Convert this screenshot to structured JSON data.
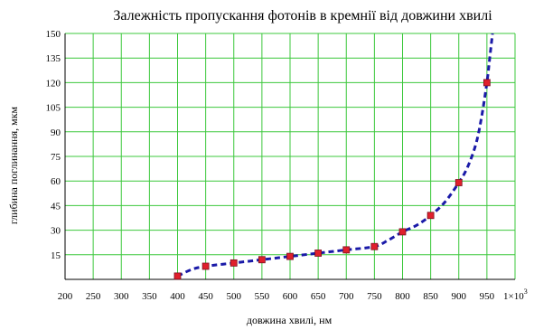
{
  "chart_data": {
    "type": "line",
    "title": "Залежність пропускання фотонів в кремнії від довжини хвилі",
    "xlabel": "довжина хвилі, нм",
    "ylabel": "глибина поглинання, мкм",
    "x_ticks": [
      "200",
      "250",
      "300",
      "350",
      "400",
      "450",
      "500",
      "550",
      "600",
      "650",
      "700",
      "750",
      "800",
      "850",
      "900",
      "950"
    ],
    "x_multiplier_label": "1×10",
    "x_multiplier_exponent": "3",
    "y_ticks": [
      "15",
      "30",
      "45",
      "60",
      "75",
      "90",
      "105",
      "120",
      "135",
      "150"
    ],
    "xlim": [
      200,
      1000
    ],
    "ylim": [
      0,
      150
    ],
    "grid": true,
    "series": [
      {
        "kind": "markers",
        "x": [
          400,
          450,
          500,
          550,
          600,
          650,
          700,
          750,
          800,
          850,
          900,
          950
        ],
        "y": [
          2,
          8,
          10,
          12,
          14,
          16,
          18,
          20,
          29,
          39,
          59,
          120
        ]
      },
      {
        "kind": "dashed-curve",
        "x": [
          400,
          425,
          450,
          500,
          550,
          600,
          650,
          700,
          750,
          775,
          800,
          825,
          850,
          875,
          900,
          915,
          930,
          940,
          950,
          955,
          960
        ],
        "y": [
          2,
          6,
          8,
          10,
          12,
          14,
          16,
          18,
          20,
          24,
          29,
          33,
          39,
          47,
          59,
          68,
          82,
          98,
          120,
          135,
          150
        ]
      }
    ],
    "colors": {
      "grid": "#3cc83c",
      "curve": "#1a1aa8",
      "marker_fill": "#e0202c",
      "marker_stroke": "#7a1020",
      "axis": "#000000"
    }
  }
}
